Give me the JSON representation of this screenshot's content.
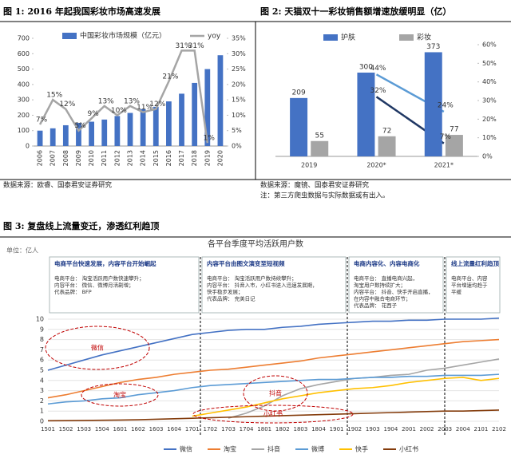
{
  "chart_data": [
    {
      "type": "bar",
      "title": "图 1: 2016 年起我国彩妆市场高速发展",
      "categories": [
        "2006",
        "2007",
        "2008",
        "2009",
        "2010",
        "2011",
        "2012",
        "2013",
        "2014",
        "2015",
        "2016",
        "2017",
        "2018",
        "2019",
        "2020"
      ],
      "series": [
        {
          "name": "中国彩妆市场规模（亿元）",
          "color": "#4472c4",
          "values": [
            100,
            115,
            135,
            150,
            158,
            172,
            195,
            215,
            240,
            255,
            290,
            340,
            410,
            500,
            590
          ]
        },
        {
          "name": "yoy",
          "color": "#a5a5a5",
          "axis": "y2",
          "values": [
            7,
            15,
            12,
            5,
            9,
            13,
            10,
            13,
            11,
            12,
            21,
            31,
            31,
            1,
            null
          ],
          "value_labels": [
            "7%",
            "15%",
            "12%",
            "5%",
            "9%",
            "13%",
            "10%",
            "13%",
            "11%",
            "12%",
            "21%",
            "31%",
            "31%",
            "1%",
            null
          ]
        }
      ],
      "ylim": [
        0,
        700
      ],
      "yticks": [
        0,
        100,
        200,
        300,
        400,
        500,
        600,
        700
      ],
      "y2lim": [
        0,
        35
      ],
      "y2ticks": [
        {
          "value": 0,
          "label": "0%"
        },
        {
          "value": 5,
          "label": "5%"
        },
        {
          "value": 10,
          "label": "10%"
        },
        {
          "value": 15,
          "label": "15%"
        },
        {
          "value": 20,
          "label": "20%"
        },
        {
          "value": 25,
          "label": "25%"
        },
        {
          "value": 30,
          "label": "30%"
        },
        {
          "value": 35,
          "label": "35%"
        }
      ],
      "source": "数据来源：欧睿、国泰君安证券研究"
    },
    {
      "type": "bar",
      "title": "图 2: 天猫双十一彩妆销售额增速放缓明显（亿）",
      "categories": [
        "2019",
        "2020*",
        "2021*"
      ],
      "series": [
        {
          "name": "护肤",
          "color": "#4472c4",
          "values": [
            209,
            300,
            373
          ]
        },
        {
          "name": "彩妆",
          "color": "#a5a5a5",
          "values": [
            55,
            72,
            77
          ]
        },
        {
          "color": "#5b9bd5",
          "axis": "y2",
          "values": [
            null,
            44,
            24
          ],
          "value_labels": [
            null,
            "44%",
            "24%"
          ]
        },
        {
          "color": "#203864",
          "axis": "y2",
          "values": [
            null,
            32,
            7
          ],
          "value_labels": [
            null,
            "32%",
            "7%"
          ]
        }
      ],
      "show_value_labels": true,
      "ylim": [
        0,
        400
      ],
      "y2lim": [
        0,
        60
      ],
      "y2ticks": [
        {
          "value": 0,
          "label": "0%"
        },
        {
          "value": 10,
          "label": "10%"
        },
        {
          "value": 20,
          "label": "20%"
        },
        {
          "value": 30,
          "label": "30%"
        },
        {
          "value": 40,
          "label": "40%"
        },
        {
          "value": 50,
          "label": "50%"
        },
        {
          "value": 60,
          "label": "60%"
        }
      ],
      "source": "数据来源：魔镜、国泰君安证券研究",
      "note": "注：第三方爬虫数据与实际数据或有出入。"
    },
    {
      "type": "line",
      "title": "图 3: 复盘线上流量变迁，渗透红利趋顶",
      "subtitle": "各平台季度平均活跃用户数",
      "unit": "单位：亿人",
      "categories": [
        "1501",
        "1502",
        "1503",
        "1504",
        "1601",
        "1602",
        "1603",
        "1604",
        "1701",
        "1702",
        "1703",
        "1704",
        "1801",
        "1802",
        "1803",
        "1804",
        "1901",
        "1902",
        "1903",
        "1904",
        "2001",
        "2002",
        "2003",
        "2004",
        "2101",
        "2102"
      ],
      "series": [
        {
          "name": "微信",
          "color": "#4472c4",
          "values": [
            5.0,
            5.5,
            6.0,
            6.5,
            6.9,
            7.3,
            7.7,
            8.1,
            8.5,
            8.7,
            8.9,
            9.0,
            9.0,
            9.2,
            9.3,
            9.5,
            9.6,
            9.7,
            9.8,
            9.8,
            9.9,
            9.9,
            10.0,
            10.0,
            10.0,
            10.1
          ]
        },
        {
          "name": "淘宝",
          "color": "#ed7d31",
          "values": [
            2.3,
            2.6,
            3.0,
            3.4,
            3.8,
            4.1,
            4.3,
            4.6,
            4.8,
            5.0,
            5.1,
            5.3,
            5.5,
            5.7,
            5.9,
            6.2,
            6.4,
            6.6,
            6.8,
            7.0,
            7.2,
            7.4,
            7.6,
            7.8,
            7.9,
            8.0
          ]
        },
        {
          "name": "抖音",
          "color": "#a5a5a5",
          "values": [
            null,
            null,
            null,
            null,
            null,
            null,
            null,
            null,
            null,
            null,
            0.3,
            0.8,
            1.5,
            2.5,
            3.2,
            3.6,
            3.9,
            4.2,
            4.3,
            4.5,
            4.6,
            5.0,
            5.2,
            5.5,
            5.8,
            6.1
          ]
        },
        {
          "name": "微博",
          "color": "#5b9bd5",
          "values": [
            1.7,
            1.9,
            2.0,
            2.2,
            2.3,
            2.6,
            2.8,
            3.0,
            3.3,
            3.5,
            3.6,
            3.7,
            3.8,
            3.9,
            4.0,
            4.1,
            4.1,
            4.2,
            4.3,
            4.3,
            4.4,
            4.4,
            4.5,
            4.5,
            4.5,
            4.6
          ]
        },
        {
          "name": "快手",
          "color": "#ffc000",
          "values": [
            null,
            null,
            null,
            null,
            null,
            null,
            null,
            null,
            0.5,
            0.8,
            1.1,
            1.4,
            1.8,
            2.2,
            2.5,
            2.8,
            3.0,
            3.2,
            3.3,
            3.5,
            3.8,
            4.0,
            4.2,
            4.3,
            4.0,
            4.2
          ]
        },
        {
          "name": "小红书",
          "color": "#843c0c",
          "values": [
            0.05,
            0.06,
            0.08,
            0.1,
            0.12,
            0.15,
            0.2,
            0.25,
            0.3,
            0.35,
            0.4,
            0.45,
            0.5,
            0.55,
            0.6,
            0.65,
            0.7,
            0.75,
            0.8,
            0.85,
            0.9,
            0.95,
            1.0,
            1.0,
            1.05,
            1.1
          ]
        }
      ],
      "ylim": [
        0,
        10
      ],
      "yticks": [
        0,
        1,
        2,
        3,
        4,
        5,
        6,
        7,
        8,
        9,
        10
      ],
      "grid": true,
      "annotations": [
        "微信",
        "淘宝",
        "抖音",
        "小红书"
      ],
      "stages": [
        {
          "title": "电商平台快速发展，内容平台开始崛起",
          "lines": [
            "电商平台：  淘宝活跃用户数快速攀升；",
            "内容平台：  微信、微博月活剧增；",
            "代表品牌：  BFP"
          ]
        },
        {
          "title": "内容平台由图文演变至短视频",
          "lines": [
            "电商平台：  淘宝活跃用户数持续攀升；",
            "内容平台：  抖音入市，小红书进入迅速发展期，",
            "快手稳步发展；",
            "代表品牌：  完美日记"
          ]
        },
        {
          "title": "电商内容化、内容电商化",
          "lines": [
            "电商平台：  直播电商兴起，",
            "淘宝用户数持续扩大；",
            "内容平台：  抖音、快手开启直播，",
            "在内容中融合电商环节；",
            "代表品牌：  花西子"
          ]
        },
        {
          "title": "线上流量红利趋顶",
          "lines": [
            "电商平台、内容",
            "平台增速均趋于",
            "平缓"
          ]
        }
      ]
    }
  ]
}
